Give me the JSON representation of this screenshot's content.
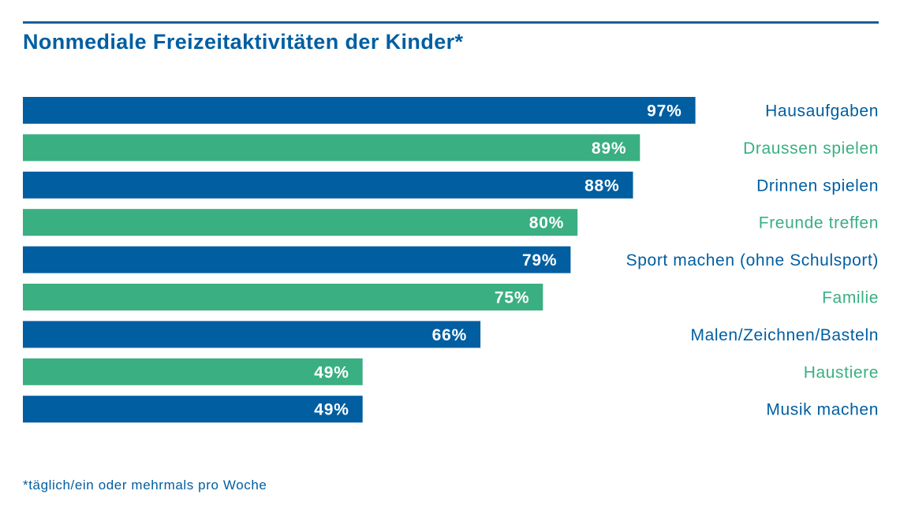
{
  "colors": {
    "blue": "#005ea1",
    "green": "#3aaf82",
    "rule": "#1a5e99",
    "title": "#005ea1",
    "bar_text": "#ffffff"
  },
  "title": "Nonmediale Freizeitaktivitäten der Kinder*",
  "footnote": "*täglich/ein oder mehrmals pro Woche",
  "chart_data": {
    "type": "bar",
    "orientation": "horizontal",
    "title": "Nonmediale Freizeitaktivitäten der Kinder*",
    "categories": [
      "Hausaufgaben",
      "Draussen spielen",
      "Drinnen spielen",
      "Freunde treffen",
      "Sport machen (ohne Schulsport)",
      "Familie",
      "Malen/Zeichnen/Basteln",
      "Haustiere",
      "Musik machen"
    ],
    "values": [
      97,
      89,
      88,
      80,
      79,
      75,
      66,
      49,
      49
    ],
    "value_labels": [
      "97%",
      "89%",
      "88%",
      "80%",
      "79%",
      "75%",
      "66%",
      "49%",
      "49%"
    ],
    "bar_colors": [
      "blue",
      "green",
      "blue",
      "green",
      "blue",
      "green",
      "blue",
      "green",
      "blue"
    ],
    "unit": "%",
    "xlim": [
      0,
      100
    ],
    "grid": false,
    "legend": "none",
    "label_position": "right"
  }
}
